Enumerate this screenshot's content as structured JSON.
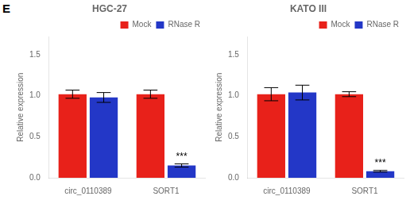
{
  "chart_data": [
    {
      "type": "bar",
      "title": "HGC-27",
      "categories": [
        "circ_0110389",
        "SORT1"
      ],
      "series": [
        {
          "name": "Mock",
          "color": "#e8211a",
          "values": [
            1.02,
            1.02
          ],
          "errors": [
            0.05,
            0.05
          ]
        },
        {
          "name": "RNase R",
          "color": "#2337c7",
          "values": [
            0.98,
            0.15
          ],
          "errors": [
            0.06,
            0.02
          ]
        }
      ],
      "y_label": "Relative expression",
      "ylim": [
        0,
        1.72
      ],
      "yticks": [
        {
          "value": 0,
          "label": "0.0"
        },
        0.5,
        {
          "value": 1,
          "label": "1.0"
        },
        1.5
      ],
      "grid": false,
      "legend": "upper right",
      "annotations": [
        {
          "text": "E"
        },
        {
          "text": "***",
          "category": "SORT1",
          "series": "RNase R"
        }
      ]
    },
    {
      "type": "bar",
      "title": "KATO III",
      "categories": [
        "circ_0110389",
        "SORT1"
      ],
      "series": [
        {
          "name": "Mock",
          "color": "#e8211a",
          "values": [
            1.02,
            1.02
          ],
          "errors": [
            0.08,
            0.03
          ]
        },
        {
          "name": "RNase R",
          "color": "#2337c7",
          "values": [
            1.04,
            0.08
          ],
          "errors": [
            0.09,
            0.01
          ]
        }
      ],
      "y_label": "Relative expression",
      "ylim": [
        0,
        1.72
      ],
      "yticks": [
        {
          "value": 0,
          "label": "0.0"
        },
        0.5,
        {
          "value": 1,
          "label": "1.0"
        },
        1.5
      ],
      "grid": false,
      "legend": "upper right",
      "annotations": [
        {
          "text": "***",
          "category": "SORT1",
          "series": "RNase R"
        }
      ]
    }
  ]
}
